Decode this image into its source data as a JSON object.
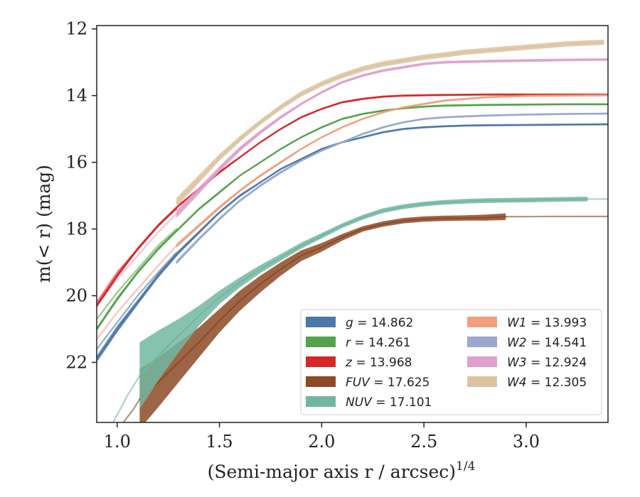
{
  "chart_data": {
    "type": "line",
    "title": "",
    "xlabel": "(Semi-major axis r / arcsec)",
    "xlabel_sup": "1/4",
    "ylabel": "m(< r) (mag)",
    "xlim": [
      0.9,
      3.4
    ],
    "ylim": [
      23.8,
      11.9
    ],
    "y_inverted": true,
    "xticks": [
      "1.0",
      "1.5",
      "2.0",
      "2.5",
      "3.0"
    ],
    "xtick_values": [
      1.0,
      1.5,
      2.0,
      2.5,
      3.0
    ],
    "yticks": [
      "12",
      "14",
      "16",
      "18",
      "20",
      "22"
    ],
    "ytick_values": [
      12,
      14,
      16,
      18,
      20,
      22
    ],
    "grid": false,
    "legend_position": "lower-right",
    "legend_columns": 2,
    "series": [
      {
        "name": "g = 14.862",
        "label_var": "g",
        "label_val": "14.862",
        "color": "#4c78a8",
        "x": [
          0.9,
          1.0,
          1.1,
          1.2,
          1.3,
          1.4,
          1.5,
          1.6,
          1.7,
          1.8,
          1.9,
          2.0,
          2.1,
          2.2,
          2.3,
          2.4,
          2.5,
          2.6,
          2.7,
          2.8,
          3.0,
          3.2,
          3.4
        ],
        "y": [
          21.9,
          21.0,
          20.2,
          19.4,
          18.7,
          18.1,
          17.5,
          17.0,
          16.6,
          16.2,
          15.9,
          15.6,
          15.4,
          15.25,
          15.1,
          15.0,
          14.95,
          14.92,
          14.9,
          14.89,
          14.88,
          14.87,
          14.86
        ],
        "band": [
          0.1,
          0.1,
          0.08,
          0.07,
          0.06,
          0.05,
          0.04,
          0.04,
          0.03,
          0.03,
          0.03,
          0.03,
          0.03,
          0.03,
          0.03,
          0.03,
          0.03,
          0.03,
          0.03,
          0.03,
          0.03,
          0.03,
          0.03
        ]
      },
      {
        "name": "r = 14.261",
        "label_var": "r",
        "label_val": "14.261",
        "color": "#54a24b",
        "x": [
          0.9,
          1.0,
          1.1,
          1.2,
          1.3,
          1.4,
          1.5,
          1.6,
          1.7,
          1.8,
          1.9,
          2.0,
          2.1,
          2.2,
          2.3,
          2.4,
          2.5,
          2.6,
          2.8,
          3.0,
          3.2,
          3.4
        ],
        "y": [
          21.0,
          20.1,
          19.3,
          18.6,
          18.0,
          17.4,
          16.9,
          16.4,
          16.0,
          15.6,
          15.25,
          14.95,
          14.7,
          14.55,
          14.45,
          14.38,
          14.33,
          14.3,
          14.28,
          14.27,
          14.26,
          14.26
        ],
        "band": [
          0.06,
          0.06,
          0.05,
          0.05,
          0.04,
          0.04,
          0.04,
          0.03,
          0.03,
          0.03,
          0.03,
          0.03,
          0.03,
          0.03,
          0.03,
          0.03,
          0.03,
          0.03,
          0.03,
          0.03,
          0.03,
          0.03
        ]
      },
      {
        "name": "z = 13.968",
        "label_var": "z",
        "label_val": "13.968",
        "color": "#d62728",
        "x": [
          0.9,
          1.0,
          1.1,
          1.2,
          1.3,
          1.4,
          1.5,
          1.6,
          1.7,
          1.8,
          1.9,
          2.0,
          2.1,
          2.2,
          2.3,
          2.4,
          2.6,
          2.8,
          3.0,
          3.2,
          3.4
        ],
        "y": [
          20.3,
          19.4,
          18.6,
          17.9,
          17.3,
          16.8,
          16.3,
          15.85,
          15.4,
          15.0,
          14.65,
          14.4,
          14.2,
          14.1,
          14.03,
          14.0,
          13.98,
          13.97,
          13.97,
          13.97,
          13.97
        ],
        "band": [
          0.06,
          0.06,
          0.05,
          0.05,
          0.04,
          0.04,
          0.04,
          0.03,
          0.03,
          0.03,
          0.03,
          0.03,
          0.03,
          0.03,
          0.03,
          0.03,
          0.03,
          0.03,
          0.03,
          0.03,
          0.03
        ]
      },
      {
        "name": "FUV = 17.625",
        "label_var": "FUV",
        "label_val": "17.625",
        "color": "#8c4a26",
        "x": [
          1.11,
          1.2,
          1.3,
          1.4,
          1.5,
          1.6,
          1.7,
          1.8,
          1.9,
          2.0,
          2.1,
          2.2,
          2.3,
          2.4,
          2.5,
          2.6,
          2.7,
          2.8,
          2.9
        ],
        "y": [
          23.1,
          22.6,
          22.0,
          21.4,
          20.75,
          20.15,
          19.65,
          19.2,
          18.8,
          18.55,
          18.25,
          18.0,
          17.85,
          17.75,
          17.7,
          17.68,
          17.67,
          17.66,
          17.63
        ],
        "band": [
          0.9,
          0.75,
          0.6,
          0.45,
          0.35,
          0.3,
          0.25,
          0.2,
          0.16,
          0.13,
          0.1,
          0.08,
          0.08,
          0.08,
          0.08,
          0.08,
          0.08,
          0.09,
          0.1
        ]
      },
      {
        "name": "NUV = 17.101",
        "label_var": "NUV",
        "label_val": "17.101",
        "color": "#72b7a1",
        "x": [
          1.11,
          1.2,
          1.3,
          1.4,
          1.5,
          1.6,
          1.7,
          1.8,
          1.9,
          2.0,
          2.1,
          2.2,
          2.3,
          2.4,
          2.5,
          2.6,
          2.7,
          2.8,
          3.0,
          3.2,
          3.3
        ],
        "y": [
          22.4,
          21.8,
          21.2,
          20.6,
          20.05,
          19.6,
          19.2,
          18.85,
          18.5,
          18.2,
          17.9,
          17.65,
          17.45,
          17.33,
          17.25,
          17.2,
          17.17,
          17.15,
          17.13,
          17.11,
          17.1
        ],
        "band": [
          1.0,
          0.75,
          0.5,
          0.3,
          0.2,
          0.15,
          0.12,
          0.1,
          0.09,
          0.08,
          0.07,
          0.07,
          0.07,
          0.07,
          0.07,
          0.07,
          0.07,
          0.07,
          0.07,
          0.07,
          0.07
        ]
      },
      {
        "name": "W1 = 13.993",
        "label_var": "W1",
        "label_val": "13.993",
        "color": "#f0a07c",
        "x": [
          1.29,
          1.4,
          1.5,
          1.6,
          1.7,
          1.8,
          1.9,
          2.0,
          2.1,
          2.2,
          2.3,
          2.4,
          2.5,
          2.6,
          2.8,
          3.0,
          3.2,
          3.4
        ],
        "y": [
          18.5,
          17.9,
          17.35,
          16.85,
          16.4,
          16.0,
          15.6,
          15.25,
          14.95,
          14.7,
          14.5,
          14.35,
          14.25,
          14.15,
          14.05,
          14.01,
          14.0,
          13.99
        ],
        "band": [
          0.06,
          0.05,
          0.05,
          0.04,
          0.04,
          0.04,
          0.03,
          0.03,
          0.03,
          0.03,
          0.03,
          0.03,
          0.03,
          0.03,
          0.03,
          0.03,
          0.03,
          0.03
        ]
      },
      {
        "name": "W2 = 14.541",
        "label_var": "W2",
        "label_val": "14.541",
        "color": "#9aa8cc",
        "x": [
          1.29,
          1.4,
          1.5,
          1.6,
          1.7,
          1.8,
          1.9,
          2.0,
          2.1,
          2.2,
          2.3,
          2.4,
          2.5,
          2.6,
          2.8,
          3.0,
          3.2,
          3.4
        ],
        "y": [
          19.0,
          18.3,
          17.7,
          17.15,
          16.7,
          16.3,
          15.95,
          15.65,
          15.4,
          15.15,
          14.95,
          14.8,
          14.7,
          14.65,
          14.6,
          14.57,
          14.55,
          14.54
        ],
        "band": [
          0.06,
          0.05,
          0.05,
          0.04,
          0.04,
          0.04,
          0.03,
          0.03,
          0.03,
          0.03,
          0.03,
          0.03,
          0.03,
          0.03,
          0.03,
          0.03,
          0.03,
          0.03
        ]
      },
      {
        "name": "W3 = 12.924",
        "label_var": "W3",
        "label_val": "12.924",
        "color": "#e0a0cc",
        "x": [
          1.29,
          1.4,
          1.5,
          1.6,
          1.7,
          1.8,
          1.9,
          2.0,
          2.1,
          2.2,
          2.3,
          2.4,
          2.5,
          2.6,
          2.8,
          3.0,
          3.2,
          3.4
        ],
        "y": [
          17.55,
          16.85,
          16.2,
          15.6,
          15.1,
          14.65,
          14.25,
          13.9,
          13.6,
          13.4,
          13.25,
          13.15,
          13.05,
          13.0,
          12.97,
          12.95,
          12.93,
          12.92
        ],
        "band": [
          0.12,
          0.1,
          0.08,
          0.07,
          0.06,
          0.05,
          0.04,
          0.04,
          0.04,
          0.04,
          0.04,
          0.04,
          0.04,
          0.04,
          0.04,
          0.04,
          0.04,
          0.04
        ]
      },
      {
        "name": "W4 = 12.305",
        "label_var": "W4",
        "label_val": "12.305",
        "color": "#dcc3a0",
        "x": [
          1.29,
          1.4,
          1.5,
          1.6,
          1.7,
          1.8,
          1.9,
          2.0,
          2.1,
          2.2,
          2.3,
          2.4,
          2.5,
          2.6,
          2.7,
          2.8,
          3.0,
          3.2,
          3.38
        ],
        "y": [
          17.2,
          16.5,
          15.85,
          15.3,
          14.8,
          14.35,
          13.95,
          13.65,
          13.4,
          13.2,
          13.05,
          12.95,
          12.85,
          12.78,
          12.7,
          12.65,
          12.55,
          12.45,
          12.4
        ],
        "band": [
          0.14,
          0.12,
          0.1,
          0.09,
          0.08,
          0.08,
          0.08,
          0.08,
          0.08,
          0.08,
          0.08,
          0.08,
          0.08,
          0.08,
          0.08,
          0.08,
          0.08,
          0.08,
          0.08
        ]
      }
    ],
    "extrapolations": [
      {
        "series": "g = 14.862",
        "x": [
          0.9,
          1.0,
          1.1,
          1.2,
          1.29
        ],
        "y": [
          21.6,
          20.8,
          20.0,
          19.3,
          18.7
        ]
      },
      {
        "series": "r = 14.261",
        "x": [
          0.9,
          1.0,
          1.1,
          1.2,
          1.29
        ],
        "y": [
          20.7,
          19.9,
          19.2,
          18.5,
          18.0
        ]
      },
      {
        "series": "z = 13.968",
        "x": [
          0.9,
          1.0,
          1.1,
          1.2,
          1.29
        ],
        "y": [
          20.2,
          19.3,
          18.6,
          17.9,
          17.4
        ]
      },
      {
        "series": "W1 = 13.993",
        "x": [
          0.9,
          1.0,
          1.1,
          1.2,
          1.29
        ],
        "y": [
          21.3,
          20.5,
          19.8,
          19.1,
          18.5
        ]
      },
      {
        "series": "W3 = 12.924",
        "x": [
          0.9,
          1.0,
          1.1,
          1.2,
          1.29
        ],
        "y": [
          20.3,
          19.5,
          18.8,
          18.1,
          17.55
        ]
      },
      {
        "series": "NUV = 17.101",
        "x": [
          0.98,
          1.05,
          1.11
        ],
        "y": [
          23.8,
          23.0,
          22.4
        ]
      },
      {
        "series": "FUV = 17.625",
        "x": [
          1.03,
          1.08,
          1.11
        ],
        "y": [
          23.8,
          23.4,
          23.1
        ]
      },
      {
        "series": "NUV = 17.101",
        "x": [
          3.3,
          3.4
        ],
        "y": [
          17.1,
          17.1
        ]
      },
      {
        "series": "FUV = 17.625",
        "x": [
          2.9,
          3.1,
          3.4
        ],
        "y": [
          17.63,
          17.625,
          17.625
        ]
      }
    ]
  }
}
